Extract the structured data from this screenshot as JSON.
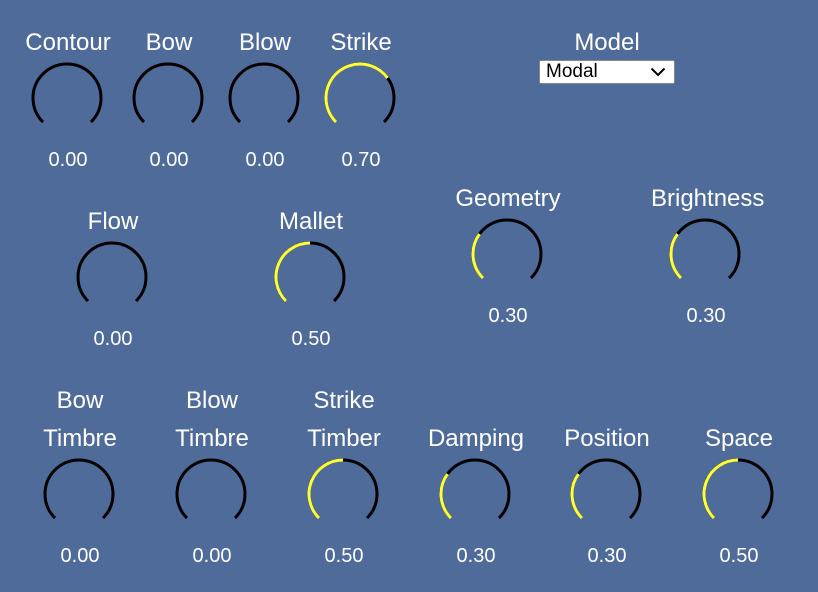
{
  "colors": {
    "background": "#4f6b99",
    "arc_off": "#000000",
    "arc_on": "#ffff33",
    "text": "#ffffff"
  },
  "model": {
    "label": "Model",
    "selected": "Modal",
    "icon": "chevron-down-icon"
  },
  "knobs": [
    {
      "id": "contour",
      "label_lines": [
        "Contour"
      ],
      "value_text": "0.00",
      "value": 0.0
    },
    {
      "id": "bow",
      "label_lines": [
        "Bow"
      ],
      "value_text": "0.00",
      "value": 0.0
    },
    {
      "id": "blow",
      "label_lines": [
        "Blow"
      ],
      "value_text": "0.00",
      "value": 0.0
    },
    {
      "id": "strike",
      "label_lines": [
        "Strike"
      ],
      "value_text": "0.70",
      "value": 0.7
    },
    {
      "id": "flow",
      "label_lines": [
        "Flow"
      ],
      "value_text": "0.00",
      "value": 0.0
    },
    {
      "id": "mallet",
      "label_lines": [
        "Mallet"
      ],
      "value_text": "0.50",
      "value": 0.5
    },
    {
      "id": "geometry",
      "label_lines": [
        "Geometry"
      ],
      "value_text": "0.30",
      "value": 0.3
    },
    {
      "id": "brightness",
      "label_lines": [
        "Brightness"
      ],
      "value_text": "0.30",
      "value": 0.3
    },
    {
      "id": "bow-timbre",
      "label_lines": [
        "Bow",
        "Timbre"
      ],
      "value_text": "0.00",
      "value": 0.0
    },
    {
      "id": "blow-timbre",
      "label_lines": [
        "Blow",
        "Timbre"
      ],
      "value_text": "0.00",
      "value": 0.0
    },
    {
      "id": "strike-timber",
      "label_lines": [
        "Strike",
        "Timber"
      ],
      "value_text": "0.50",
      "value": 0.5
    },
    {
      "id": "damping",
      "label_lines": [
        "Damping"
      ],
      "value_text": "0.30",
      "value": 0.3
    },
    {
      "id": "position",
      "label_lines": [
        "Position"
      ],
      "value_text": "0.30",
      "value": 0.3
    },
    {
      "id": "space",
      "label_lines": [
        "Space"
      ],
      "value_text": "0.50",
      "value": 0.5
    }
  ]
}
